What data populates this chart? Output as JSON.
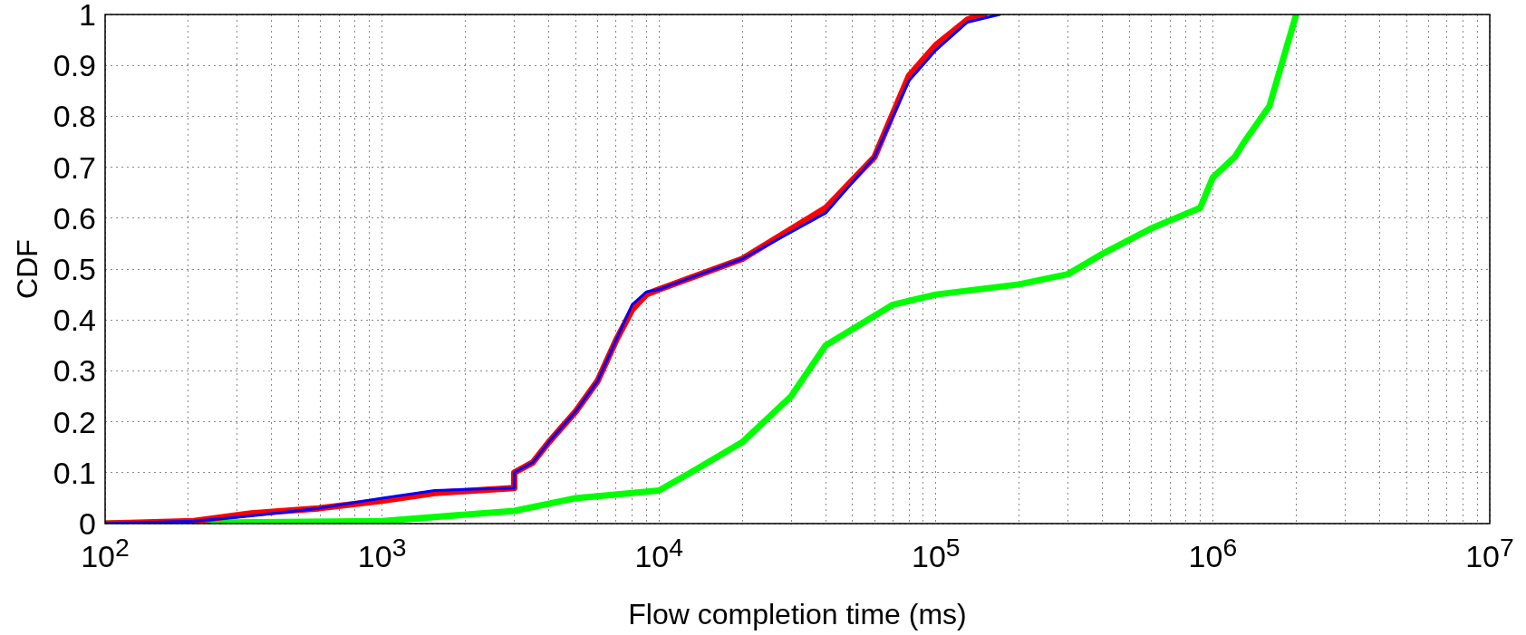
{
  "chart_data": {
    "type": "line",
    "xlabel": "Flow completion time (ms)",
    "ylabel": "CDF",
    "log": "x",
    "grid": true,
    "legend": false,
    "line_style": "solid",
    "xlim": [
      100,
      10000000
    ],
    "ylim": [
      0,
      1
    ],
    "xticks": [
      {
        "value": 100,
        "label": "10$^{2}$"
      },
      {
        "value": 1000,
        "label": "10$^{3}$"
      },
      {
        "value": 10000,
        "label": "10$^{4}$"
      },
      {
        "value": 100000,
        "label": "10$^{5}$"
      },
      {
        "value": 1000000,
        "label": "10$^{6}$"
      },
      {
        "value": 10000000,
        "label": "10$^{7}$"
      }
    ],
    "yticks": [
      0,
      0.1,
      0.2,
      0.3,
      0.4,
      0.5,
      0.6,
      0.7,
      0.8,
      0.9,
      1
    ],
    "series": [
      {
        "color": "#0000ff",
        "x": [
          100,
          209,
          337,
          590,
          1000,
          1550,
          3000,
          3000,
          3500,
          4000,
          5000,
          6000,
          7000,
          8000,
          9000,
          10000,
          20000,
          40000,
          60000,
          80000,
          100000,
          130000,
          170000
        ],
        "values": [
          0,
          0.005,
          0.015,
          0.03,
          0.05,
          0.065,
          0.07,
          0.1,
          0.12,
          0.16,
          0.22,
          0.28,
          0.36,
          0.43,
          0.455,
          0.46,
          0.52,
          0.61,
          0.72,
          0.87,
          0.93,
          0.985,
          1
        ]
      },
      {
        "color": "#ff0000",
        "x": [
          100,
          209,
          337,
          590,
          1000,
          1550,
          3000,
          3000,
          3500,
          4000,
          5000,
          6000,
          7000,
          8000,
          9000,
          10000,
          20000,
          40000,
          60000,
          80000,
          100000,
          130000,
          150000
        ],
        "values": [
          0,
          0.005,
          0.02,
          0.03,
          0.045,
          0.06,
          0.07,
          0.1,
          0.12,
          0.16,
          0.22,
          0.28,
          0.36,
          0.42,
          0.45,
          0.46,
          0.52,
          0.62,
          0.72,
          0.88,
          0.94,
          0.99,
          1
        ]
      },
      {
        "color": "#00ff00",
        "x": [
          100,
          1000,
          3000,
          5000,
          10000,
          13000,
          20000,
          30000,
          40000,
          70000,
          100000,
          200000,
          300000,
          400000,
          600000,
          900000,
          1000000,
          1200000,
          1300000,
          1600000,
          2000000
        ],
        "values": [
          0,
          0.005,
          0.025,
          0.05,
          0.065,
          0.1,
          0.16,
          0.25,
          0.35,
          0.43,
          0.45,
          0.47,
          0.49,
          0.53,
          0.58,
          0.62,
          0.68,
          0.72,
          0.75,
          0.82,
          1
        ]
      }
    ]
  }
}
